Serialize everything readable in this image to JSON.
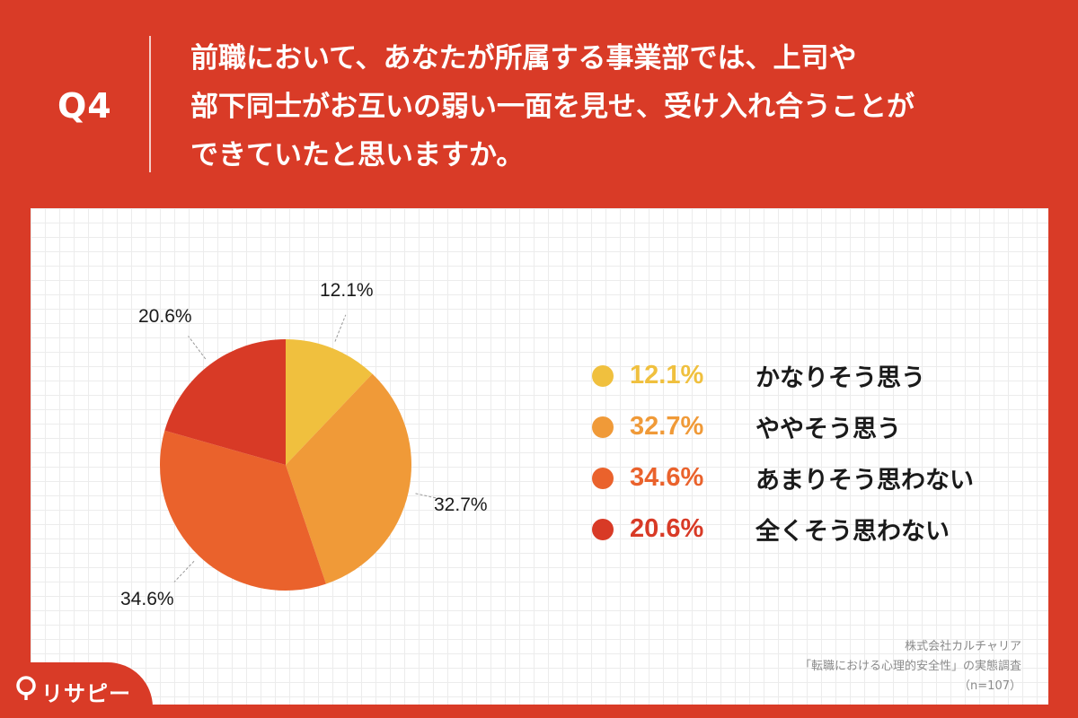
{
  "header": {
    "q_label": "Q4",
    "question_lines": [
      "前職において、あなたが所属する事業部では、上司や",
      "部下同士がお互いの弱い一面を見せ、受け入れ合うことが",
      "できていたと思いますか。"
    ]
  },
  "chart_data": {
    "type": "pie",
    "categories": [
      "かなりそう思う",
      "ややそう思う",
      "あまりそう思わない",
      "全くそう思わない"
    ],
    "values": [
      12.1,
      32.7,
      34.6,
      20.6
    ],
    "value_labels": [
      "12.1%",
      "32.7%",
      "34.6%",
      "20.6%"
    ],
    "colors": [
      "#f0c03e",
      "#f09a38",
      "#ea622c",
      "#d83a26"
    ],
    "start_angle": "12 o'clock",
    "direction": "clockwise"
  },
  "source": {
    "line1": "株式会社カルチャリア",
    "line2": "「転職における心理的安全性」の実態調査",
    "line3": "（n=107）"
  },
  "logo": {
    "text": "リサピー"
  }
}
